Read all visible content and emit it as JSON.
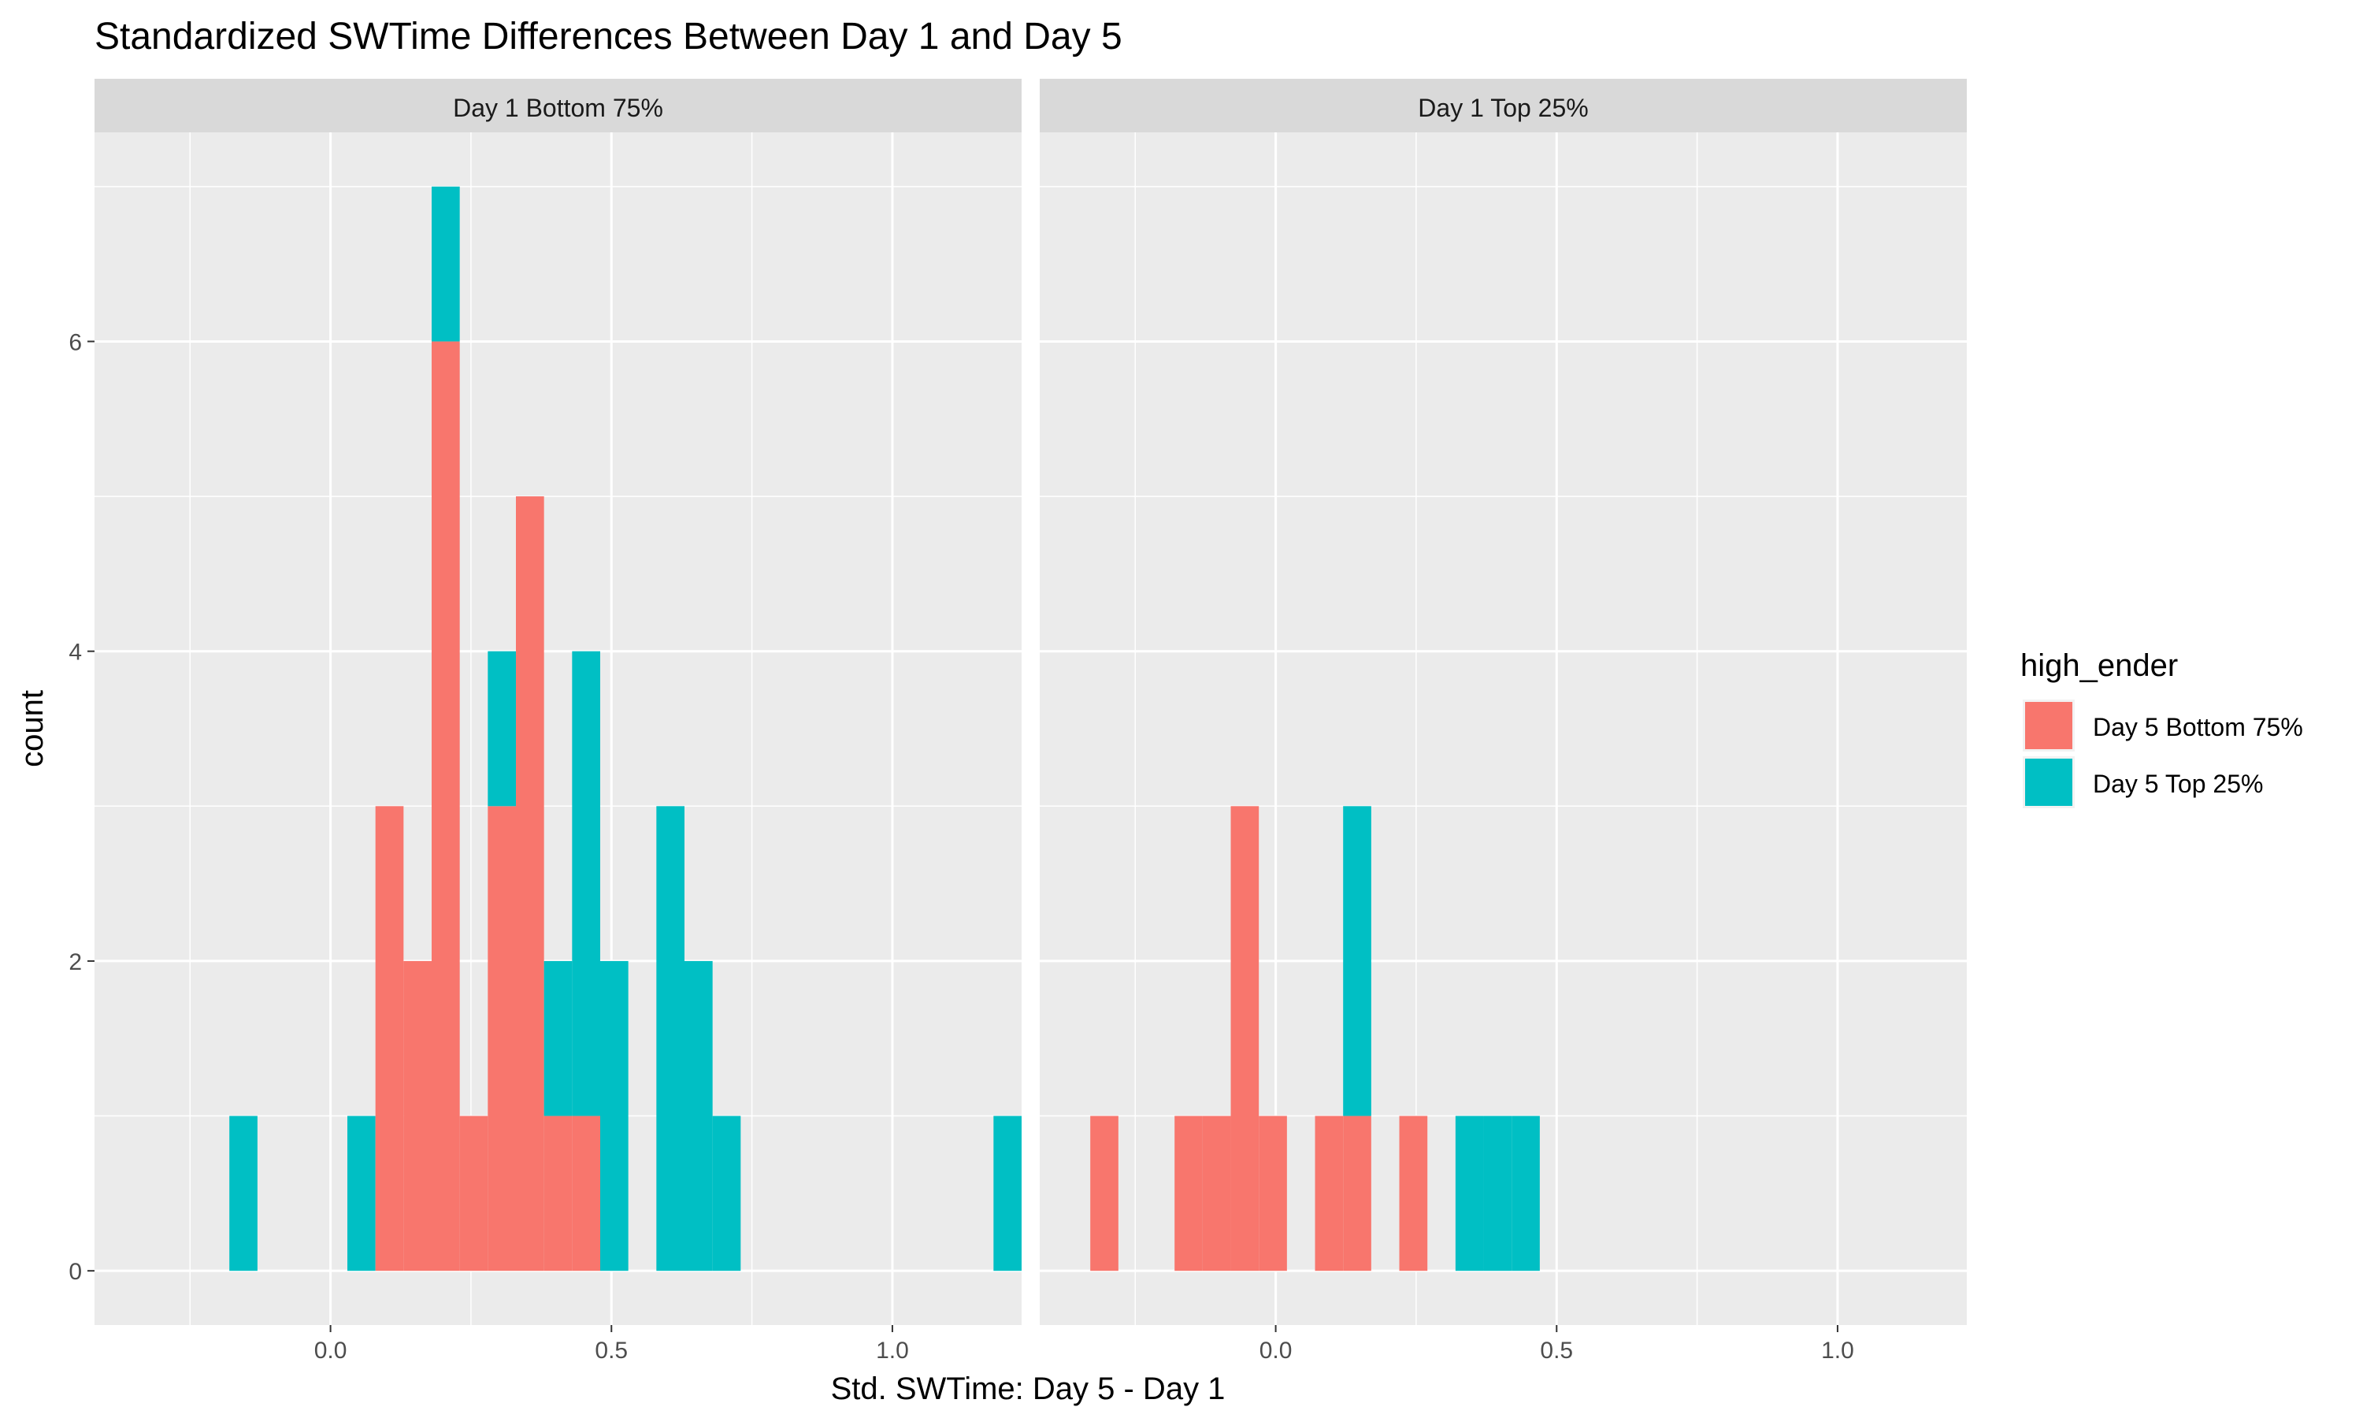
{
  "chart_data": {
    "type": "bar",
    "title": "Standardized SWTime Differences Between Day 1 and Day 5",
    "xlabel": "Std. SWTime: Day 5 - Day 1",
    "ylabel": "count",
    "xlim": [
      -0.42,
      1.23
    ],
    "ylim": [
      -0.35,
      7.35
    ],
    "x_ticks": [
      0.0,
      0.5,
      1.0
    ],
    "x_tick_labels": [
      "0.0",
      "0.5",
      "1.0"
    ],
    "y_ticks": [
      0,
      2,
      4,
      6
    ],
    "y_tick_labels": [
      "0",
      "2",
      "4",
      "6"
    ],
    "bin_width": 0.05,
    "stacked": true,
    "grid": true,
    "legend": {
      "title": "high_ender",
      "position": "right",
      "entries": [
        {
          "label": "Day 5 Bottom 75%",
          "color": "#F8766D"
        },
        {
          "label": "Day 5 Top 25%",
          "color": "#00BFC4"
        }
      ]
    },
    "panels": [
      {
        "strip_label": "Day 1 Bottom 75%",
        "bins": [
          {
            "x0": -0.18,
            "x1": -0.13,
            "bottom": 0,
            "top": 1
          },
          {
            "x0": 0.03,
            "x1": 0.08,
            "bottom": 0,
            "top": 1
          },
          {
            "x0": 0.08,
            "x1": 0.13,
            "bottom": 3,
            "top": 0
          },
          {
            "x0": 0.13,
            "x1": 0.18,
            "bottom": 2,
            "top": 0
          },
          {
            "x0": 0.18,
            "x1": 0.23,
            "bottom": 6,
            "top": 1
          },
          {
            "x0": 0.23,
            "x1": 0.28,
            "bottom": 1,
            "top": 0
          },
          {
            "x0": 0.28,
            "x1": 0.33,
            "bottom": 3,
            "top": 1
          },
          {
            "x0": 0.33,
            "x1": 0.38,
            "bottom": 5,
            "top": 0
          },
          {
            "x0": 0.38,
            "x1": 0.43,
            "bottom": 1,
            "top": 1
          },
          {
            "x0": 0.43,
            "x1": 0.48,
            "bottom": 1,
            "top": 3
          },
          {
            "x0": 0.48,
            "x1": 0.53,
            "bottom": 0,
            "top": 2
          },
          {
            "x0": 0.58,
            "x1": 0.63,
            "bottom": 0,
            "top": 3
          },
          {
            "x0": 0.63,
            "x1": 0.68,
            "bottom": 0,
            "top": 2
          },
          {
            "x0": 0.68,
            "x1": 0.73,
            "bottom": 0,
            "top": 1
          },
          {
            "x0": 1.18,
            "x1": 1.23,
            "bottom": 0,
            "top": 1
          }
        ]
      },
      {
        "strip_label": "Day 1 Top 25%",
        "bins": [
          {
            "x0": -0.33,
            "x1": -0.28,
            "bottom": 1,
            "top": 0
          },
          {
            "x0": -0.18,
            "x1": -0.13,
            "bottom": 1,
            "top": 0
          },
          {
            "x0": -0.13,
            "x1": -0.08,
            "bottom": 1,
            "top": 0
          },
          {
            "x0": -0.08,
            "x1": -0.03,
            "bottom": 3,
            "top": 0
          },
          {
            "x0": -0.03,
            "x1": 0.02,
            "bottom": 1,
            "top": 0
          },
          {
            "x0": 0.07,
            "x1": 0.12,
            "bottom": 1,
            "top": 0
          },
          {
            "x0": 0.12,
            "x1": 0.17,
            "bottom": 1,
            "top": 2
          },
          {
            "x0": 0.22,
            "x1": 0.27,
            "bottom": 1,
            "top": 0
          },
          {
            "x0": 0.32,
            "x1": 0.37,
            "bottom": 0,
            "top": 1
          },
          {
            "x0": 0.37,
            "x1": 0.42,
            "bottom": 0,
            "top": 1
          },
          {
            "x0": 0.42,
            "x1": 0.47,
            "bottom": 0,
            "top": 1
          }
        ]
      }
    ]
  }
}
